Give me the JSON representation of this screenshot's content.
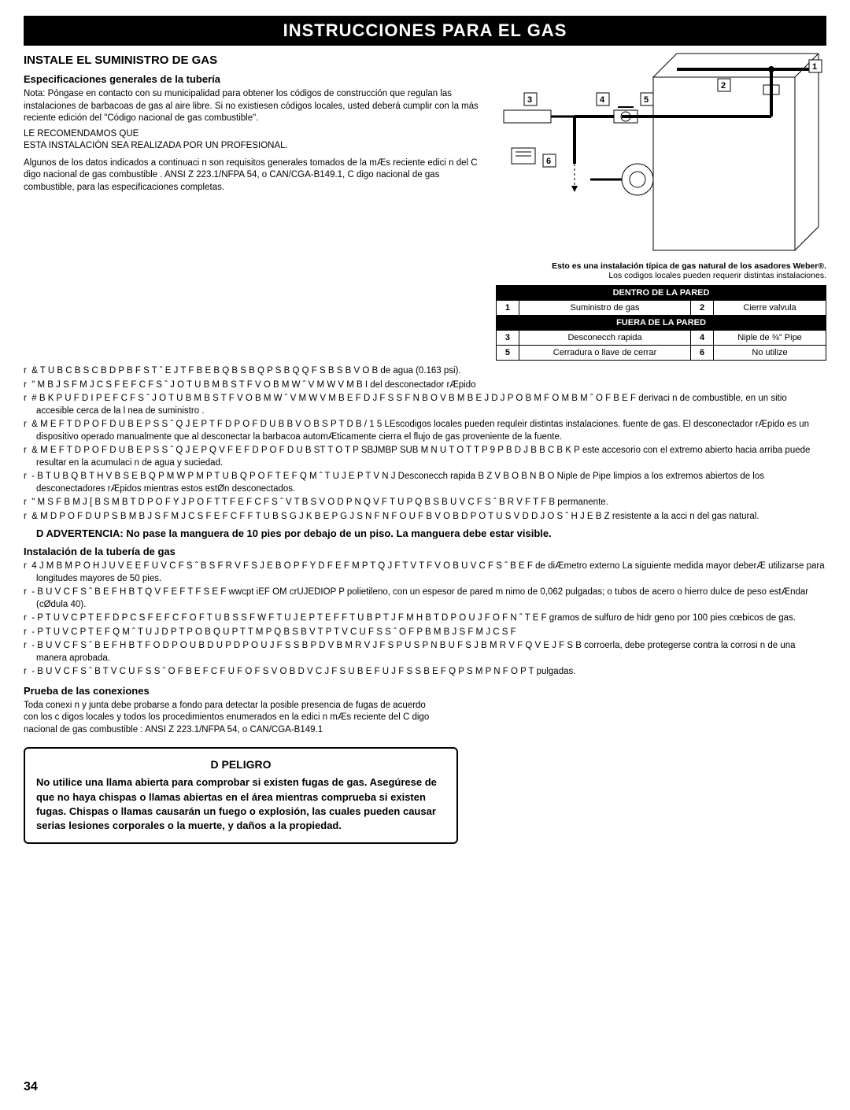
{
  "header": "INSTRUCCIONES PARA EL GAS",
  "section1_title": "INSTALE EL SUMINISTRO DE GAS",
  "spec_title": "Especificaciones generales de la tubería",
  "spec_note": "Nota: Póngase en contacto con su municipalidad para obtener los códigos de construcción que regulan las instalaciones de barbacoas de gas al aire libre. Si no existiesen códigos locales, usted deberá cumplir con la más reciente edición del \"Código nacional de gas combustible\".",
  "spec_rec1": "LE RECOMENDAMOS QUE",
  "spec_rec2": "ESTA INSTALACIÓN SEA REALIZADA POR UN PROFESIONAL.",
  "spec_intro": "Algunos de los datos indicados a continuaci n son requisitos generales tomados de la mÆs reciente edici n del  C digo nacional de gas combustible . ANSI Z 223.1/NFPA 54, o CAN/CGA-B149.1,  C digo nacional de gas combustible, para las especificaciones completas.",
  "bullets1": [
    "& T U B  C B S C B D P B  F S T ˆ  E J T F   B E B  Q B S B  Q P S B  Q Q F S B S  B  V O B de agua (0.163 psi).",
    "\" M  B J S F  M J C S F     E F C F S ˆ  J O T U B M B S T F  V O B  M W ˆ V  M W V M B   I del desconectador rÆpido",
    "# B K P  U F D I P   E F C F S ˆ  J O T U B M B S T F  V O B  M W ˆ V  M W V M B   E F   D J F S S F  N B O V B M  B E J D J P O B M  F O  M B  M ˆ O F B  E F derivaci n de combustible, en un sitio accesible cerca de la l nea de suministro .",
    "& M  E F T D P O F D U B E P S  S ˆ Q J E P  T F  D P O F D U B  B  V O B  S P T D B  / 1 5 LEscodigos locales pueden requleir distintas instalaciones. fuente de gas. El desconectador rÆpido es un dispositivo operado manualmente que al desconectar la barbacoa automÆticamente cierra el flujo de gas proveniente de la fuente.",
    "& M  E F T D P O F D U B E P S  S ˆ Q J E P  Q V F E F  D P O F D U B ST T O T P SBJMBP SUB M N U T O T T P 9 P B D J B  B C B K P este accesorio con el extremo abierto hacia arriba puede resultar en la acumulaci n de agua y suciedad.",
    "- B T  U B Q B T  H V B S E B Q P M W P   M P T  U B Q P O F T  E F  Q M ˆ T U J E P  T V N J Desconecch rapida  B Z V B O  B  N B O Niple de  Pipe limpios a los extremos abiertos de los desconectadores rÆpidos mientras estos estØn desconectados.",
    "\" M  S F B M J [ B S  M B T  D P O F Y J P O F T   T F  E F C F S ˆ  V T B S  V O  D P N Q V F T U P  Q B S B  U V C F S ˆ B  R V F  T F B permanente.",
    "& M  D P O F D U P S  B M  B J S F  M J C S F  E F C F  F T U B S  G J K B E P  G J S N F N F O U F  B  V O B  D P O T U S V D D J  O  S ˆ H J E B  Z resistente a la acci n del gas natural."
  ],
  "warning1": "ADVERTENCIA: No pase la manguera de 10 pies por debajo de un piso. La manguera debe estar visible.",
  "install_title": "Instalación de la tubería de gas",
  "bullets2": [
    "4 J  M B  M P O H J U V E  E F  U V C F S ˆ B  S F R V F S J E B  O P  F Y D F E F  M P T        Q J F T  V T F  V O B  U V C F S ˆ B  E F  de diÆmetro externo La siguiente medida mayor deberÆ utilizarse para longitudes mayores de 50 pies.",
    "- B  U V C F S ˆ B  E F  H B T  Q V F E F  T F S  E F  wwcpt iEF  OM crUJEDIOP   P  polietileno, con un espesor de pared m nimo de 0,062 pulgadas; o tubos de acero o hierro dulce de peso estÆndar (cØdula 40).",
    "- P T  U V C P T  E F  D P C S F  E F C F O  F T U B S  S F W F T U J E P T  E F  F T U B  P  T J  F M  H B T  D P O U J F O F  N ˆ T  E F gramos de sulfuro de hidr geno por 100 pies cœbicos de gas.",
    "- P T  U V C P T  E F  Q M ˆ T U J D P  T P O  B Q U P T  T  M P  Q B S B  V T P  T V C U F S S ˆ O F P  B M  B J S F  M J C S F",
    "- B  U V C F S ˆ B  E F  H B T  F O  D P O U B D U P  D P O  U J F S S B   P  D V B M R V J F S  P U S P  N B U F S J B M  R V F  Q V E J F S B corroerla, debe protegerse contra la corrosi n de una manera aprobada.",
    "- B  U V C F S ˆ B  T V C U F S S ˆ O F B  E F C F  U F O F S  V O B  D V C J F S U B  E F  U J F S S B  E F  Q P S  M P  N F O P T pulgadas."
  ],
  "test_title": "Prueba de las conexiones",
  "test_body": "Toda conexi n y junta debe probarse a fondo para detectar la posible presencia de fugas de acuerdo con los c digos locales y todos los procedimientos enumerados en la edici n mÆs reciente del  C digo nacional de gas combustible : ANSI Z 223.1/NFPA 54, o CAN/CGA-B149.1",
  "danger_title": "PELIGRO",
  "danger_body": "No utilice una llama abierta para comprobar si existen fugas de gas. Asegúrese de que no haya chispas o llamas abiertas en el área mientras comprueba si existen fugas. Chispas o llamas causarán un fuego o explosión, las cuales pueden causar serias lesiones corporales o la muerte, y daños a la propiedad.",
  "diagram_caption1": "Esto es una instalación típica de gas natural de los asadores Weber®.",
  "diagram_caption2": "Los codigos locales pueden requerir distintas instalaciones.",
  "legend": {
    "dentro": "DENTRO DE LA PARED",
    "fuera": "FUERA DE LA PARED",
    "rows": [
      [
        "1",
        "Suministro de gas",
        "2",
        "Cierre valvula"
      ],
      [
        "3",
        "Desconecch rapida",
        "4",
        "Niple de ⅜\" Pipe"
      ],
      [
        "5",
        "Cerradura o llave de cerrar",
        "6",
        "No utilize"
      ]
    ]
  },
  "page_num": "34"
}
